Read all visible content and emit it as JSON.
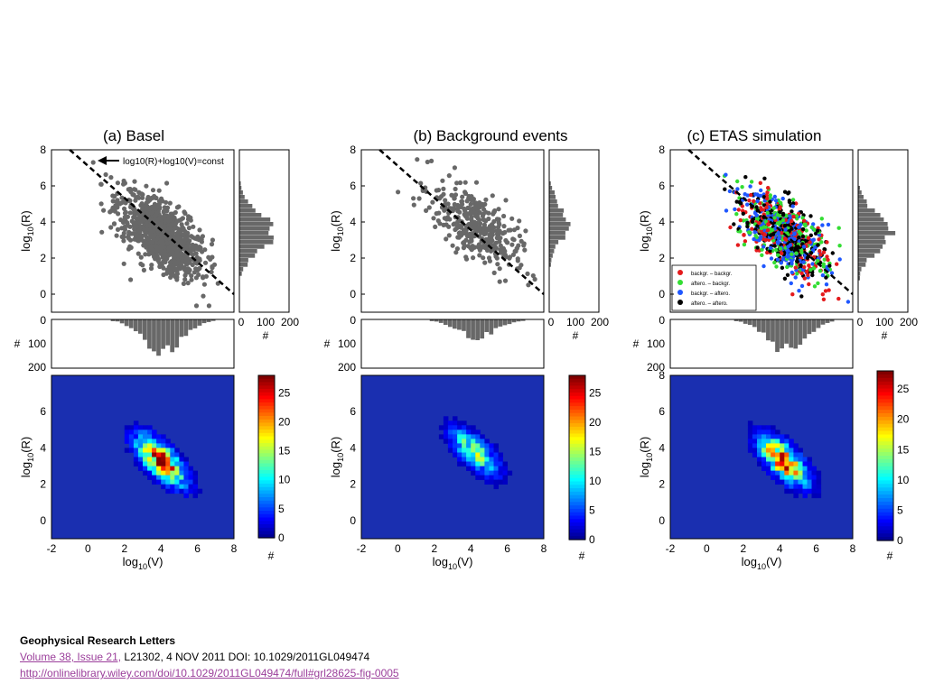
{
  "caption": {
    "journal": "Geophysical Research Letters",
    "volume_link": "Volume 38, Issue 21,",
    "citation": " L21302, 4 NOV 2011 DOI: 10.1029/2011GL049474",
    "url": "http://onlinelibrary.wiley.com/doi/10.1029/2011GL049474/full#grl28625-fig-0005"
  },
  "colors": {
    "scatter_gray": "#686868",
    "hist_gray": "#686868",
    "heat_background": "#1a2fb0",
    "legend": [
      "#e41a1c",
      "#33dd33",
      "#1f57ff",
      "#000000"
    ]
  },
  "chart_data": [
    {
      "type": "scatter",
      "panel": "a",
      "title": "(a) Basel",
      "ylabel": "log10(R)",
      "xlim": [
        -2,
        8
      ],
      "ylim": [
        -1,
        8
      ],
      "yticks": [
        "0",
        "2",
        "4",
        "6",
        "8"
      ],
      "annotation": "log10(R)+log10(V)=const",
      "dashed_line": {
        "x": [
          -1,
          8
        ],
        "y": [
          8,
          0
        ]
      },
      "cloud": {
        "center": [
          4,
          3.3
        ],
        "n": 900
      },
      "side_histogram": {
        "xticks": [
          "0",
          "100",
          "200"
        ],
        "xlabel": "#"
      },
      "bottom_histogram": {
        "yticks": [
          "0",
          "100",
          "200"
        ],
        "ylabel": "#"
      },
      "heatmap": {
        "type": "heatmap",
        "ylabel": "log10(R)",
        "xlabel": "log10(V)",
        "xticks": [
          "-2",
          "0",
          "2",
          "4",
          "6",
          "8"
        ],
        "yticks": [
          "0",
          "2",
          "4",
          "6"
        ],
        "colorbar_ticks": [
          "0",
          "5",
          "10",
          "15",
          "20",
          "25"
        ],
        "colorbar_label": "#",
        "max": 28
      }
    },
    {
      "type": "scatter",
      "panel": "b",
      "title": "(b) Background events",
      "ylabel": "log10(R)",
      "xlim": [
        -2,
        8
      ],
      "ylim": [
        -1,
        8
      ],
      "yticks": [
        "0",
        "2",
        "4",
        "6",
        "8"
      ],
      "dashed_line": {
        "x": [
          -1,
          8
        ],
        "y": [
          8,
          0
        ]
      },
      "cloud": {
        "center": [
          4.2,
          3.8
        ],
        "n": 380
      },
      "side_histogram": {
        "xticks": [
          "0",
          "100",
          "200"
        ],
        "xlabel": "#"
      },
      "bottom_histogram": {
        "yticks": [
          "0",
          "100",
          "200"
        ],
        "ylabel": "#"
      },
      "heatmap": {
        "type": "heatmap",
        "ylabel": "log10(R)",
        "xlabel": "log10(V)",
        "xticks": [
          "-2",
          "0",
          "2",
          "4",
          "6",
          "8"
        ],
        "yticks": [
          "0",
          "2",
          "4",
          "6"
        ],
        "colorbar_ticks": [
          "0",
          "5",
          "10",
          "15",
          "20",
          "25"
        ],
        "colorbar_label": "#",
        "max": 28
      }
    },
    {
      "type": "scatter",
      "panel": "c",
      "title": "(c) ETAS simulation",
      "ylabel": "log10(R)",
      "xlim": [
        -2,
        8
      ],
      "ylim": [
        -1,
        8
      ],
      "yticks": [
        "0",
        "2",
        "4",
        "6",
        "8"
      ],
      "dashed_line": {
        "x": [
          -1,
          8
        ],
        "y": [
          8,
          0
        ]
      },
      "cloud": {
        "center": [
          4.2,
          3.3
        ],
        "n": 900
      },
      "legend": [
        "backgr. – backgr.",
        "aftero. – backgr.",
        "backgr. – aftero.",
        "aftero. – aftero."
      ],
      "legend_position": "bottom-left",
      "side_histogram": {
        "xticks": [
          "0",
          "100",
          "200"
        ],
        "xlabel": "#"
      },
      "bottom_histogram": {
        "yticks": [
          "0",
          "100",
          "200"
        ],
        "ylabel": "#"
      },
      "heatmap": {
        "type": "heatmap",
        "ylabel": "log10(R)",
        "xlabel": "log10(V)",
        "xticks": [
          "-2",
          "0",
          "2",
          "4",
          "6",
          "8"
        ],
        "yticks": [
          "0",
          "2",
          "4",
          "6",
          "8"
        ],
        "colorbar_ticks": [
          "0",
          "5",
          "10",
          "15",
          "20",
          "25"
        ],
        "colorbar_label": "#",
        "max": 28
      }
    }
  ]
}
